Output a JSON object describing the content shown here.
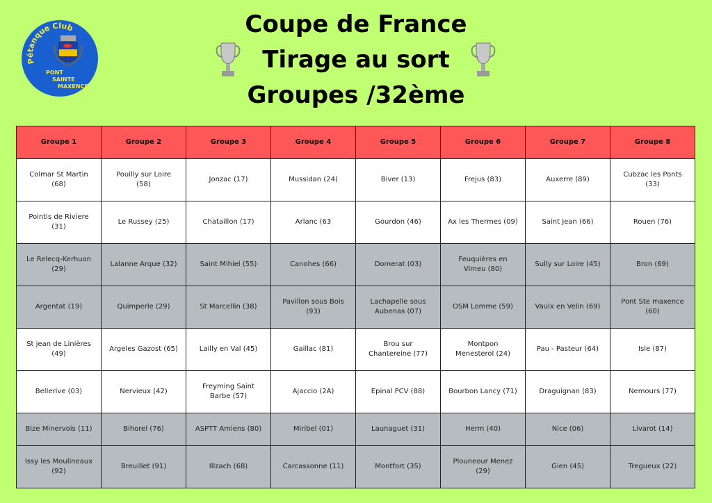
{
  "logo": {
    "text_top": "Pétanque Club",
    "text_bottom": [
      "PONT",
      "SAINTE",
      "MAXENCE"
    ],
    "colors": {
      "circle": "#1a5fd0",
      "text": "#f5e83a"
    }
  },
  "title": {
    "line1": "Coupe de France",
    "line2": "Tirage au sort",
    "line3": "Groupes /32ème"
  },
  "icons": {
    "left": "trophy-icon",
    "right": "trophy-icon"
  },
  "colors": {
    "background": "#c1ff72",
    "header": "#ff5757",
    "row_white": "#ffffff",
    "row_gray": "#b6bcbf"
  },
  "table": {
    "headers": [
      "Groupe 1",
      "Groupe 2",
      "Groupe 3",
      "Groupe 4",
      "Groupe 5",
      "Groupe 6",
      "Groupe 7",
      "Groupe 8"
    ],
    "rows": [
      [
        "Colmar St Martin (68)",
        "Pouilly sur Loire (58)",
        "Jonzac (17)",
        "Mussidan (24)",
        "Biver (13)",
        "Frejus (83)",
        "Auxerre (89)",
        "Cubzac les Ponts (33)"
      ],
      [
        "Pointis de Riviere (31)",
        "Le Russey (25)",
        "Chataillon (17)",
        "Arlanc (63",
        "Gourdon (46)",
        "Ax les Thermes (09)",
        "Saint Jean (66)",
        "Rouen (76)"
      ],
      [
        "Le Relecq-Kerhuon (29)",
        "Lalanne Arque (32)",
        "Saint Mihiel (55)",
        "Canohes (66)",
        "Domerat (03)",
        "Feuquières en Vimeu (80)",
        "Sully sur Loire (45)",
        "Bron (69)"
      ],
      [
        "Argentat (19)",
        "Quimperle (29)",
        "St Marcellin (38)",
        "Pavillon sous Bois (93)",
        "Lachapelle sous Aubenas (07)",
        "OSM Lomme (59)",
        "Vaulx en Velin (69)",
        "Pont Ste maxence (60)"
      ],
      [
        "St jean de Linières (49)",
        "Argeles Gazost (65)",
        "Lailly en Val (45)",
        "Gaillac (81)",
        "Brou sur Chantereine (77)",
        "Montpon Menesterol (24)",
        "Pau - Pasteur (64)",
        "Isle (87)"
      ],
      [
        "Bellerive (03)",
        "Nervieux (42)",
        "Freyming Saint Barbe (57)",
        "Ajaccio (2A)",
        "Epinal PCV (88)",
        "Bourbon Lancy (71)",
        "Draguignan (83)",
        "Nemours (77)"
      ],
      [
        "Bize Minervois (11)",
        "Bihorel (76)",
        "ASPTT Amiens (80)",
        "Miribel (01)",
        "Launaguet (31)",
        "Herm (40)",
        "Nice (06)",
        "Livarot (14)"
      ],
      [
        "Issy les Moulineaux (92)",
        "Breuillet (91)",
        "Illzach (68)",
        "Carcassonne (11)",
        "Montfort (35)",
        "Plouneour Menez (29)",
        "Gien (45)",
        "Tregueux (22)"
      ]
    ]
  }
}
